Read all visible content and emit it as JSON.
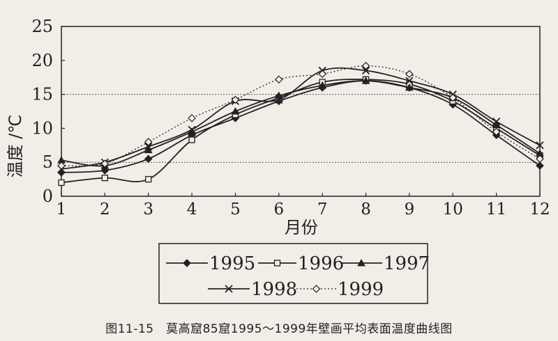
{
  "caption": "图11-15　莫高窟85窟1995～1999年壁画平均表面温度曲线图",
  "chart_data": {
    "type": "line",
    "xlabel": "月份",
    "ylabel": "温度 /℃",
    "x": [
      1,
      2,
      3,
      4,
      5,
      6,
      7,
      8,
      9,
      10,
      11,
      12
    ],
    "xlim": [
      1,
      12
    ],
    "ylim": [
      0,
      25
    ],
    "yticks": [
      0,
      5,
      10,
      15,
      20,
      25
    ],
    "grid": "dashed horizontal lines at 5 and 15",
    "legend_position": "bottom-center",
    "series": [
      {
        "name": "1995",
        "marker": "diamond-filled",
        "line": "solid",
        "values": [
          3.5,
          3.8,
          5.5,
          9.0,
          11.5,
          14.0,
          16.0,
          17.0,
          16.0,
          13.5,
          9.0,
          4.5
        ]
      },
      {
        "name": "1996",
        "marker": "square-open",
        "line": "solid",
        "values": [
          2.0,
          2.7,
          2.5,
          8.3,
          12.0,
          14.5,
          16.8,
          17.2,
          16.5,
          14.0,
          10.0,
          6.0
        ]
      },
      {
        "name": "1997",
        "marker": "triangle-filled",
        "line": "solid",
        "values": [
          5.3,
          4.5,
          6.8,
          9.5,
          12.5,
          14.8,
          16.3,
          17.0,
          16.0,
          14.5,
          10.5,
          6.3
        ]
      },
      {
        "name": "1998",
        "marker": "x",
        "line": "solid",
        "values": [
          4.0,
          5.0,
          7.3,
          9.8,
          14.0,
          14.2,
          18.5,
          18.5,
          17.0,
          15.0,
          11.0,
          7.5
        ]
      },
      {
        "name": "1999",
        "marker": "diamond-open",
        "line": "dotted",
        "values": [
          4.5,
          4.8,
          8.0,
          11.5,
          14.2,
          17.2,
          18.0,
          19.2,
          18.0,
          14.5,
          9.5,
          5.5
        ]
      }
    ]
  }
}
